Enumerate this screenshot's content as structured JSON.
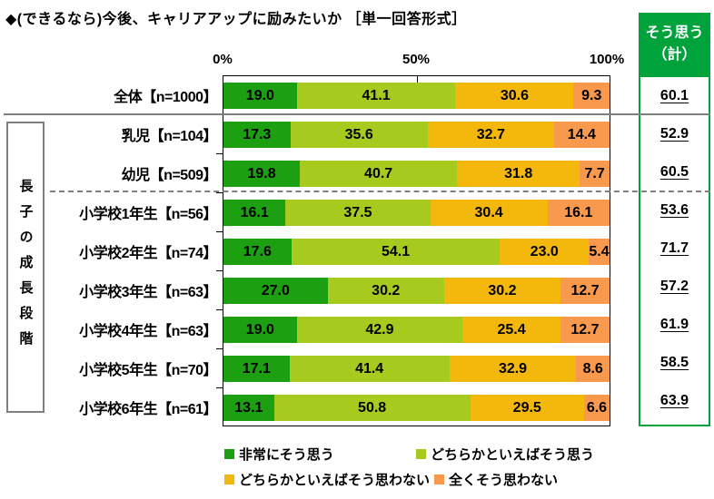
{
  "title": "◆(できるなら)今後、キャリアアップに励みたいか ［単一回答形式］",
  "axis_ticks": [
    "0%",
    "50%",
    "100%"
  ],
  "group_label": "長子の成長段階",
  "summary": {
    "header_line1": "そう思う",
    "header_line2": "（計）"
  },
  "colors": {
    "strongly_agree": "#1C9F11",
    "somewhat_agree": "#A6CB1E",
    "somewhat_disagree": "#F4B70B",
    "strongly_disagree": "#F9994E",
    "summary_green": "#00A23C",
    "separator_gray": "#7F7F7F"
  },
  "chart_data": {
    "type": "bar",
    "stacked": true,
    "orientation": "horizontal",
    "unit": "%",
    "xlim": [
      0,
      100
    ],
    "x_ticks": [
      "0%",
      "50%",
      "100%"
    ],
    "title": "◆(できるなら)今後、キャリアアップに励みたいか ［単一回答形式］",
    "categories": [
      "全体【n=1000】",
      "乳児【n=104】",
      "幼児【n=509】",
      "小学校1年生【n=56】",
      "小学校2年生【n=74】",
      "小学校3年生【n=63】",
      "小学校4年生【n=63】",
      "小学校5年生【n=70】",
      "小学校6年生【n=61】"
    ],
    "group": {
      "label": "長子の成長段階",
      "category_range_indexes": [
        1,
        8
      ]
    },
    "series": [
      {
        "name": "非常にそう思う",
        "color": "#1C9F11",
        "values": [
          19.0,
          17.3,
          19.8,
          16.1,
          17.6,
          27.0,
          19.0,
          17.1,
          13.1
        ]
      },
      {
        "name": "どちらかといえばそう思う",
        "color": "#A6CB1E",
        "values": [
          41.1,
          35.6,
          40.7,
          37.5,
          54.1,
          30.2,
          42.9,
          41.4,
          50.8
        ]
      },
      {
        "name": "どちらかといえばそう思わない",
        "color": "#F4B70B",
        "values": [
          30.6,
          32.7,
          31.8,
          30.4,
          23.0,
          30.2,
          25.4,
          32.9,
          29.5
        ]
      },
      {
        "name": "全くそう思わない",
        "color": "#F9994E",
        "values": [
          9.3,
          14.4,
          7.7,
          16.1,
          5.4,
          12.7,
          12.7,
          8.6,
          6.6
        ]
      }
    ],
    "agree_total": {
      "label": "そう思う（計）",
      "values": [
        60.1,
        52.9,
        60.5,
        53.6,
        71.7,
        57.2,
        61.9,
        58.5,
        63.9
      ]
    },
    "legend_position": "bottom"
  }
}
